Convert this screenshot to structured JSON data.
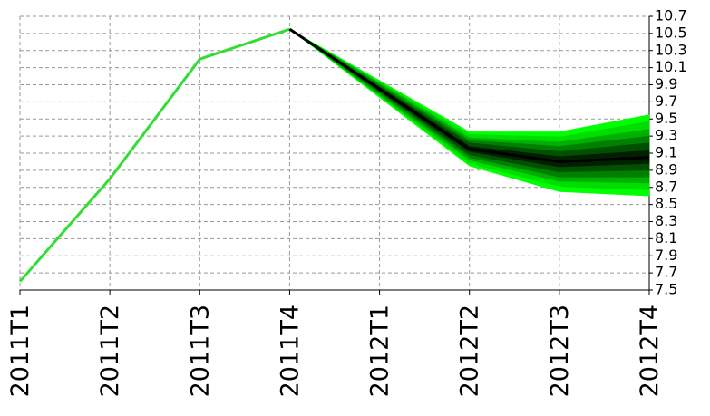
{
  "chart_data": {
    "type": "fan",
    "categories": [
      "2011T1",
      "2011T2",
      "2011T3",
      "2011T4",
      "2012T1",
      "2012T2",
      "2012T3",
      "2012T4"
    ],
    "ylim": [
      7.5,
      10.7
    ],
    "yticks": [
      7.5,
      7.7,
      7.9,
      8.1,
      8.3,
      8.5,
      8.7,
      8.9,
      9.1,
      9.3,
      9.5,
      9.7,
      9.9,
      10.1,
      10.3,
      10.5,
      10.7
    ],
    "grid": true,
    "bands": [
      {
        "color": "#00ff00",
        "upper": [
          null,
          null,
          null,
          10.55,
          9.95,
          9.35,
          9.35,
          9.55
        ],
        "lower": [
          null,
          null,
          null,
          10.55,
          9.75,
          8.95,
          8.65,
          8.6
        ]
      },
      {
        "color": "#00dd00",
        "upper": [
          null,
          null,
          null,
          10.55,
          9.93,
          9.32,
          9.29,
          9.47
        ],
        "lower": [
          null,
          null,
          null,
          10.55,
          9.77,
          8.98,
          8.71,
          8.67
        ]
      },
      {
        "color": "#00b000",
        "upper": [
          null,
          null,
          null,
          10.55,
          9.92,
          9.28,
          9.23,
          9.38
        ],
        "lower": [
          null,
          null,
          null,
          10.55,
          9.78,
          9.02,
          8.77,
          8.75
        ]
      },
      {
        "color": "#008000",
        "upper": [
          null,
          null,
          null,
          10.55,
          9.9,
          9.25,
          9.18,
          9.3
        ],
        "lower": [
          null,
          null,
          null,
          10.55,
          9.8,
          9.05,
          8.82,
          8.82
        ]
      },
      {
        "color": "#005000",
        "upper": [
          null,
          null,
          null,
          10.55,
          9.88,
          9.22,
          9.12,
          9.22
        ],
        "lower": [
          null,
          null,
          null,
          10.55,
          9.82,
          9.08,
          8.88,
          8.9
        ]
      },
      {
        "color": "#002000",
        "upper": [
          null,
          null,
          null,
          10.55,
          9.87,
          9.18,
          9.06,
          9.13
        ],
        "lower": [
          null,
          null,
          null,
          10.55,
          9.83,
          9.12,
          8.94,
          8.98
        ]
      }
    ],
    "series": [
      {
        "color": "#33dd33",
        "values": [
          7.6,
          8.8,
          10.2,
          10.55,
          null,
          null,
          null,
          null
        ]
      },
      {
        "color": "#000000",
        "values": [
          null,
          null,
          null,
          10.55,
          9.85,
          9.15,
          9.0,
          9.05
        ]
      }
    ]
  }
}
